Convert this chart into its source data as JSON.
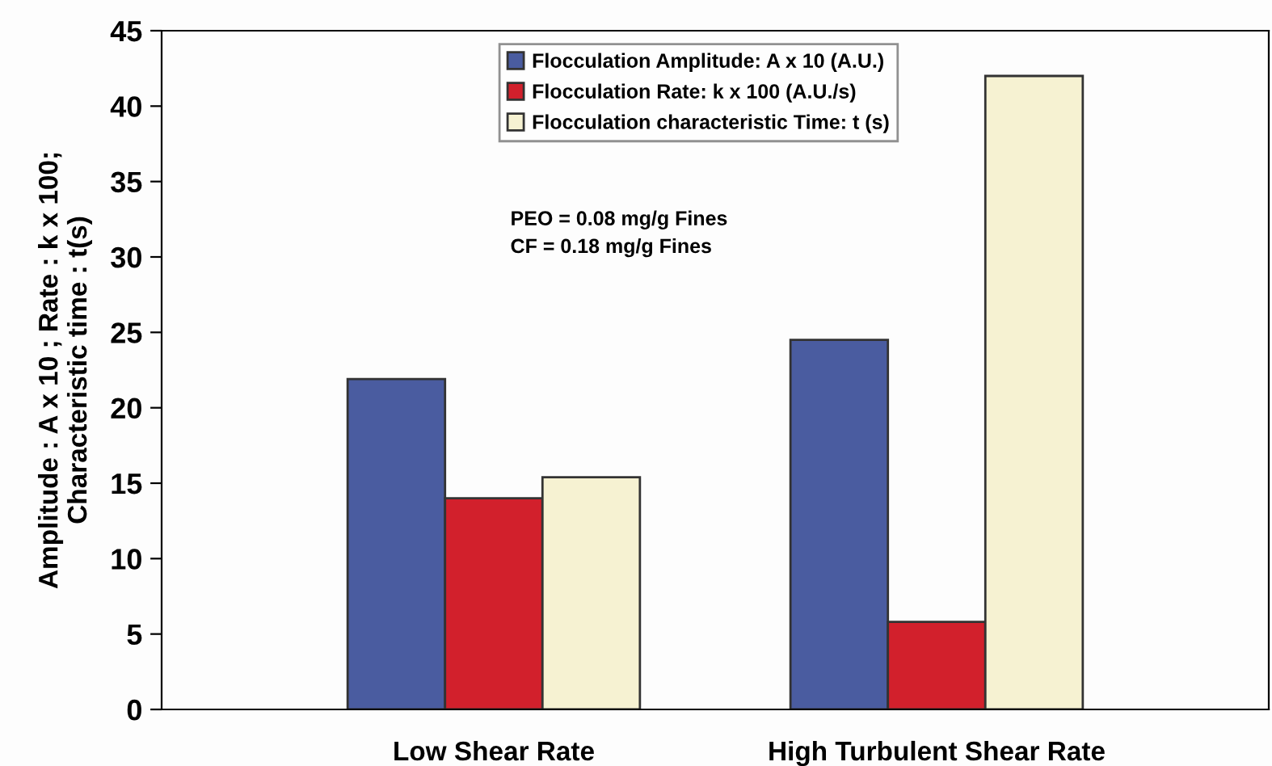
{
  "chart_data": {
    "type": "bar",
    "categories": [
      "Low Shear Rate",
      "High Turbulent Shear Rate"
    ],
    "series": [
      {
        "name": "Flocculation Amplitude: A x 10 (A.U.)",
        "color": "#4a5ca0",
        "values": [
          21.9,
          24.5
        ]
      },
      {
        "name": "Flocculation Rate: k x 100 (A.U./s)",
        "color": "#d2202c",
        "values": [
          14.0,
          5.8
        ]
      },
      {
        "name": "Flocculation characteristic Time: t (s)",
        "color": "#f6f2d2",
        "values": [
          15.4,
          42.0
        ]
      }
    ],
    "ylabel": "Amplitude : A x 10 ; Rate : k x 100;\nCharacteristic time : t(s)",
    "ylim": [
      0,
      45
    ],
    "yticks": [
      0,
      5,
      10,
      15,
      20,
      25,
      30,
      35,
      40,
      45
    ],
    "annotations": [
      "PEO = 0.08 mg/g Fines\nCF = 0.18 mg/g Fines"
    ],
    "legend": "top",
    "grid": false
  }
}
